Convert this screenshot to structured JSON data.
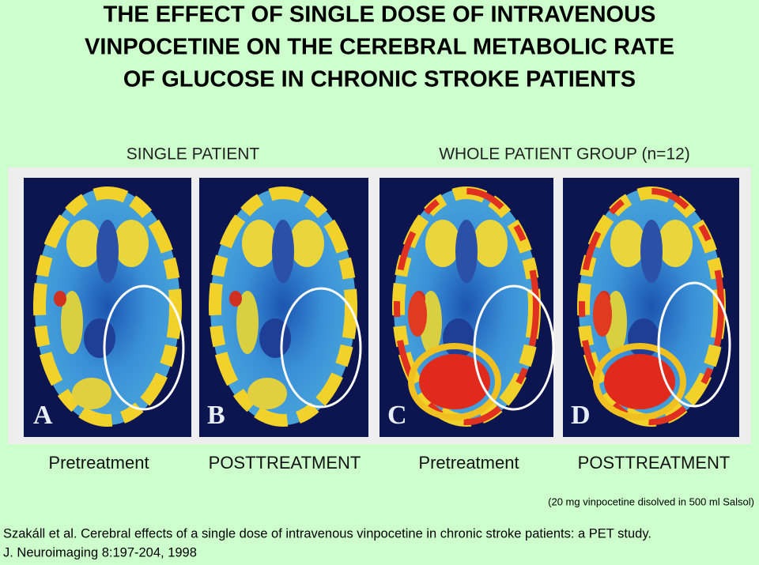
{
  "header": {
    "title_lines": [
      "THE EFFECT OF SINGLE DOSE OF INTRAVENOUS",
      "VINPOCETINE ON THE CEREBRAL METABOLIC RATE",
      "OF GLUCOSE IN CHRONIC STROKE PATIENTS"
    ]
  },
  "groups": [
    "SINGLE PATIENT",
    "WHOLE PATIENT GROUP (n=12)"
  ],
  "panels": [
    {
      "letter": "A",
      "label": "Pretreatment"
    },
    {
      "letter": "B",
      "label": "POSTTREATMENT"
    },
    {
      "letter": "C",
      "label": "Pretreatment"
    },
    {
      "letter": "D",
      "label": "POSTTREATMENT"
    }
  ],
  "footnote": "(20 mg vinpocetine disolved in 500 ml Salsol)",
  "citation": [
    "Szakáll et al. Cerebral effects of a single dose of intravenous vinpocetine in chronic stroke patients: a PET study.",
    "J. Neuroimaging 8:197-204, 1998"
  ]
}
